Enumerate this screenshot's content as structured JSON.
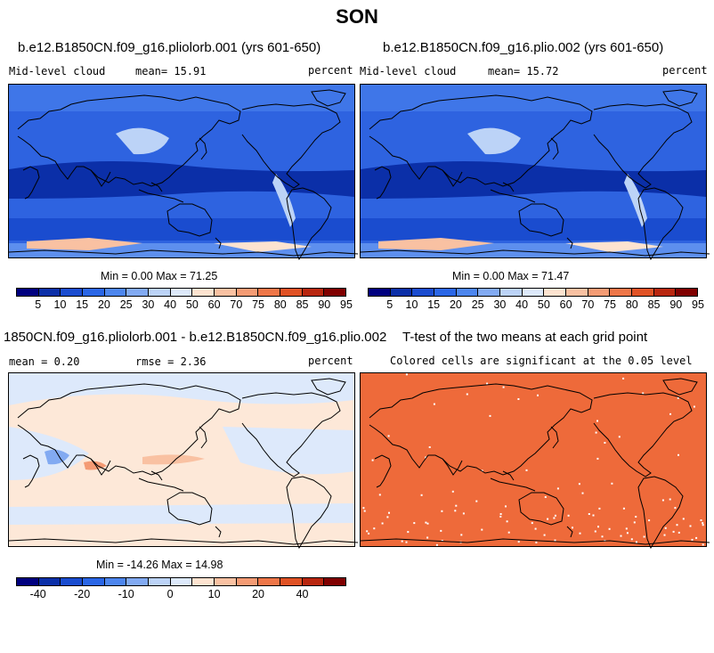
{
  "title": "SON",
  "colors": {
    "scale_a": [
      "#00007f",
      "#0b2fa8",
      "#1a4ccf",
      "#2a66e6",
      "#4d86ee",
      "#82aaf2",
      "#bcd3f7",
      "#dde9fb",
      "#fde3d0",
      "#f9c1a2",
      "#f49b74",
      "#ee7648",
      "#e05225",
      "#b8260f",
      "#800000"
    ],
    "scale_diff": [
      "#00007f",
      "#0b2fa8",
      "#1a4ccf",
      "#2a66e6",
      "#4d86ee",
      "#82aaf2",
      "#bcd3f7",
      "#dde9fb",
      "#fde3d0",
      "#f9c1a2",
      "#f49b74",
      "#ee7648",
      "#e05225",
      "#b8260f",
      "#800000"
    ],
    "significant": "#ee6a3a"
  },
  "panels": {
    "p1": {
      "title": "b.e12.B1850CN.f09_g16.pliolorb.001 (yrs 601-650)",
      "field": "Mid-level cloud",
      "stat": "mean=  15.91",
      "units": "percent",
      "minmax": "Min =   0.00 Max =  71.25",
      "ticks": [
        "5",
        "10",
        "15",
        "20",
        "25",
        "30",
        "40",
        "50",
        "60",
        "70",
        "75",
        "80",
        "85",
        "90",
        "95"
      ]
    },
    "p2": {
      "title": "b.e12.B1850CN.f09_g16.plio.002 (yrs 601-650)",
      "field": "Mid-level cloud",
      "stat": "mean=  15.72",
      "units": "percent",
      "minmax": "Min =   0.00 Max =  71.47",
      "ticks": [
        "5",
        "10",
        "15",
        "20",
        "25",
        "30",
        "40",
        "50",
        "60",
        "70",
        "75",
        "80",
        "85",
        "90",
        "95"
      ]
    },
    "p3": {
      "title": "1850CN.f09_g16.pliolorb.001 - b.e12.B1850CN.f09_g16.plio.002",
      "stat_mean": "mean =   0.20",
      "stat_rmse": "rmse =   2.36",
      "units": "percent",
      "minmax": "Min = -14.26 Max =  14.98",
      "ticks": [
        "-40",
        "-20",
        "-10",
        "0",
        "10",
        "20",
        "40"
      ]
    },
    "p4": {
      "title": "T-test of the two means at each grid point",
      "subtitle": "Colored cells are significant at the 0.05 level"
    }
  }
}
